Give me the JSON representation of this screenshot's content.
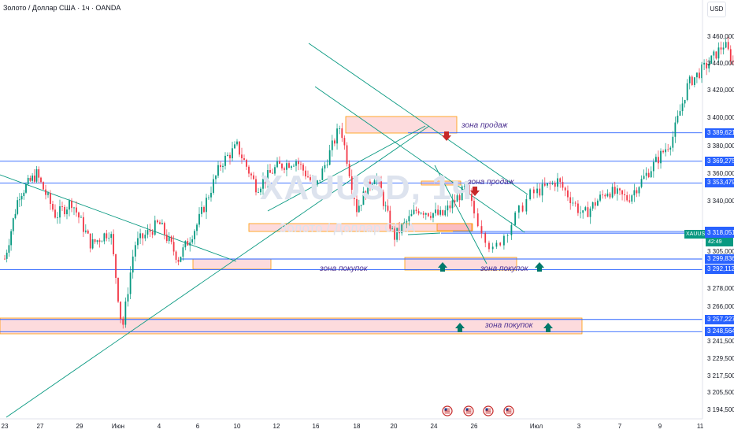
{
  "header": {
    "title": "Золото / Доллар США · 1ч · OANDA",
    "currency_button": "USD"
  },
  "watermark": {
    "symbol": "XAUUSD, 1ч",
    "name": "Золото / Доллар США"
  },
  "chart_data": {
    "type": "line",
    "symbol": "XAUUSD",
    "timeframe": "1ч",
    "source": "OANDA",
    "ylim": [
      3188,
      3472
    ],
    "y_ticks": [
      3460,
      3440,
      3420,
      3400,
      3380,
      3360,
      3340,
      3305,
      3278,
      3266,
      3241.5,
      3229.5,
      3217.5,
      3205.5,
      3194.5
    ],
    "y_tick_labels": [
      "3 460,000",
      "3 440,000",
      "3 420,000",
      "3 400,000",
      "3 380,000",
      "3 360,000",
      "3 340,000",
      "3 305,000",
      "3 278,000",
      "3 266,000",
      "3 241,500",
      "3 229,500",
      "3 217,500",
      "3 205,500",
      "3 194,500"
    ],
    "x_labels": [
      "23",
      "27",
      "29",
      "Июн",
      "4",
      "6",
      "10",
      "12",
      "16",
      "18",
      "20",
      "24",
      "26",
      "Июл",
      "3",
      "7",
      "9",
      "11"
    ],
    "price_lines": [
      {
        "value": 3389.621,
        "label": "3 389,621"
      },
      {
        "value": 3369.275,
        "label": "3 369,275"
      },
      {
        "value": 3353.479,
        "label": "3 353,479"
      },
      {
        "value": 3319.208,
        "label": "3 319,208"
      },
      {
        "value": 3318.051,
        "label": "3 318,051"
      },
      {
        "value": 3299.836,
        "label": "3 299,836"
      },
      {
        "value": 3292.112,
        "label": "3 292,112"
      },
      {
        "value": 3257.227,
        "label": "3 257,227"
      },
      {
        "value": 3248.564,
        "label": "3 248,564"
      }
    ],
    "current_price": {
      "symbol": "XAUUSD",
      "value": 3316.045,
      "label": "3 316,045",
      "countdown": "42:49"
    },
    "annotations": [
      "зона продаж",
      "зона продаж",
      "зона покупок",
      "зона покупок",
      "зона покупок"
    ],
    "price_path": [
      [
        0,
        3300
      ],
      [
        0.4,
        3345
      ],
      [
        0.9,
        3360
      ],
      [
        1.4,
        3330
      ],
      [
        1.8,
        3340
      ],
      [
        2.3,
        3310
      ],
      [
        2.8,
        3320
      ],
      [
        3.1,
        3250
      ],
      [
        3.4,
        3310
      ],
      [
        4.0,
        3325
      ],
      [
        4.5,
        3300
      ],
      [
        5.0,
        3325
      ],
      [
        5.6,
        3368
      ],
      [
        6.0,
        3380
      ],
      [
        6.5,
        3350
      ],
      [
        7.0,
        3365
      ],
      [
        7.5,
        3370
      ],
      [
        8.0,
        3350
      ],
      [
        8.6,
        3395
      ],
      [
        9.0,
        3335
      ],
      [
        9.5,
        3360
      ],
      [
        10.0,
        3315
      ],
      [
        10.6,
        3335
      ],
      [
        11.2,
        3330
      ],
      [
        11.8,
        3350
      ],
      [
        12.3,
        3305
      ],
      [
        12.9,
        3345
      ],
      [
        13.5,
        3355
      ],
      [
        14.1,
        3330
      ],
      [
        14.7,
        3348
      ],
      [
        15.2,
        3342
      ],
      [
        15.8,
        3365
      ],
      [
        16.3,
        3385
      ],
      [
        16.7,
        3425
      ],
      [
        17.2,
        3440
      ],
      [
        17.6,
        3455
      ],
      [
        18.0,
        3430
      ],
      [
        18.5,
        3420
      ],
      [
        19.0,
        3400
      ],
      [
        19.5,
        3385
      ],
      [
        20.0,
        3395
      ],
      [
        20.6,
        3378
      ],
      [
        21.1,
        3390
      ],
      [
        21.6,
        3370
      ],
      [
        22.1,
        3362
      ],
      [
        22.6,
        3368
      ],
      [
        23.1,
        3355
      ],
      [
        23.6,
        3375
      ],
      [
        24.0,
        3385
      ],
      [
        24.3,
        3368
      ],
      [
        24.8,
        3330
      ],
      [
        25.1,
        3310
      ],
      [
        25.3,
        3318
      ]
    ]
  },
  "overlays": {
    "sell_arrows": 2,
    "buy_arrows": 4,
    "event_markers": 4
  }
}
